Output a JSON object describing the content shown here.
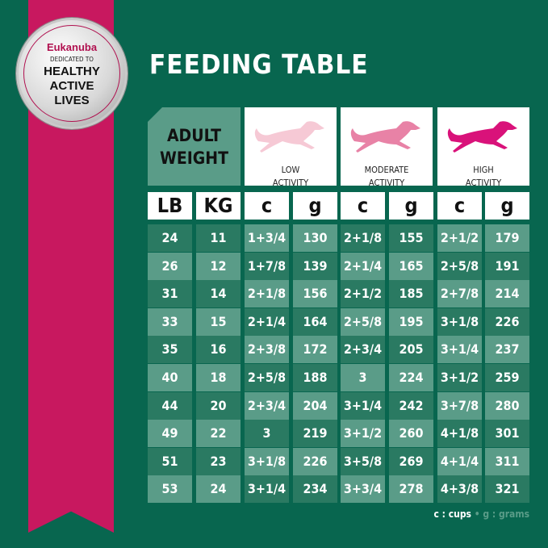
{
  "badge": {
    "brand": "Eukanuba",
    "line1": "DEDICATED TO",
    "line2": "HEALTHY",
    "line3": "ACTIVE",
    "line4": "LIVES"
  },
  "title": "FEEDING TABLE",
  "adult_weight": {
    "line1": "ADULT",
    "line2": "WEIGHT"
  },
  "activities": [
    {
      "label": "LOW\nACTIVITY",
      "color": "#f6c9d5",
      "icon": "running-dog-icon"
    },
    {
      "label": "MODERATE\nACTIVITY",
      "color": "#e882a6",
      "icon": "running-dog-icon"
    },
    {
      "label": "HIGH\nACTIVITY",
      "color": "#d9127a",
      "icon": "running-dog-icon"
    }
  ],
  "units": [
    "LB",
    "KG",
    "c",
    "g",
    "c",
    "g",
    "c",
    "g"
  ],
  "rows": [
    [
      "24",
      "11",
      "1+3/4",
      "130",
      "2+1/8",
      "155",
      "2+1/2",
      "179"
    ],
    [
      "26",
      "12",
      "1+7/8",
      "139",
      "2+1/4",
      "165",
      "2+5/8",
      "191"
    ],
    [
      "31",
      "14",
      "2+1/8",
      "156",
      "2+1/2",
      "185",
      "2+7/8",
      "214"
    ],
    [
      "33",
      "15",
      "2+1/4",
      "164",
      "2+5/8",
      "195",
      "3+1/8",
      "226"
    ],
    [
      "35",
      "16",
      "2+3/8",
      "172",
      "2+3/4",
      "205",
      "3+1/4",
      "237"
    ],
    [
      "40",
      "18",
      "2+5/8",
      "188",
      "3",
      "224",
      "3+1/2",
      "259"
    ],
    [
      "44",
      "20",
      "2+3/4",
      "204",
      "3+1/4",
      "242",
      "3+7/8",
      "280"
    ],
    [
      "49",
      "22",
      "3",
      "219",
      "3+1/2",
      "260",
      "4+1/8",
      "301"
    ],
    [
      "51",
      "23",
      "3+1/8",
      "226",
      "3+5/8",
      "269",
      "4+1/4",
      "311"
    ],
    [
      "53",
      "24",
      "3+1/4",
      "234",
      "3+3/4",
      "278",
      "4+3/8",
      "321"
    ]
  ],
  "legend": {
    "cups": "c : cups",
    "sep": "•",
    "grams": "g : grams"
  },
  "colors": {
    "background": "#08664f",
    "ribbon": "#c8185f",
    "cell_dark": "#2a7a62",
    "cell_light": "#5a9c88"
  }
}
